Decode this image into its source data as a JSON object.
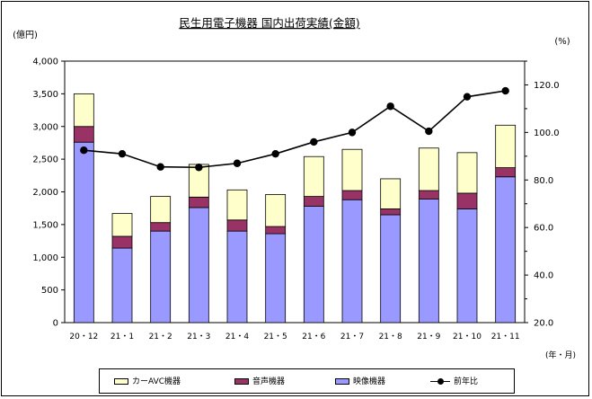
{
  "chart_data": {
    "type": "bar",
    "title": "民生用電子機器 国内出荷実績(金額)",
    "ylabel": "(億円)",
    "y2label": "(%)",
    "xlabel": "(年・月)",
    "categories": [
      "20・12",
      "21・1",
      "21・2",
      "21・3",
      "21・4",
      "21・5",
      "21・6",
      "21・7",
      "21・8",
      "21・9",
      "21・10",
      "21・11"
    ],
    "ylim": [
      0,
      4000
    ],
    "yticks": [
      "0",
      "500",
      "1,000",
      "1,500",
      "2,000",
      "2,500",
      "3,000",
      "3,500",
      "4,000"
    ],
    "y2lim": [
      20,
      130
    ],
    "y2ticks": [
      "20.0",
      "40.0",
      "60.0",
      "80.0",
      "100.0",
      "120.0"
    ],
    "stacked": true,
    "series": [
      {
        "name": "映像機器",
        "axis": "left",
        "color": "#9999ff",
        "values": [
          2760,
          1140,
          1400,
          1760,
          1400,
          1360,
          1780,
          1880,
          1650,
          1890,
          1740,
          2230
        ]
      },
      {
        "name": "音声機器",
        "axis": "left",
        "color": "#993366",
        "values": [
          240,
          180,
          130,
          160,
          170,
          110,
          150,
          140,
          90,
          130,
          240,
          140
        ]
      },
      {
        "name": "カーAVC機器",
        "axis": "left",
        "color": "#ffffcc",
        "values": [
          500,
          350,
          400,
          500,
          460,
          490,
          610,
          630,
          460,
          650,
          620,
          650
        ]
      },
      {
        "name": "前年比",
        "axis": "right",
        "type": "line",
        "color": "#000000",
        "values": [
          92.5,
          91.0,
          85.5,
          85.3,
          87.0,
          91.0,
          96.0,
          100.0,
          111.0,
          100.5,
          115.0,
          117.5
        ]
      }
    ],
    "legend_order": [
      "カーAVC機器",
      "音声機器",
      "映像機器",
      "前年比"
    ],
    "legend_position": "bottom"
  }
}
